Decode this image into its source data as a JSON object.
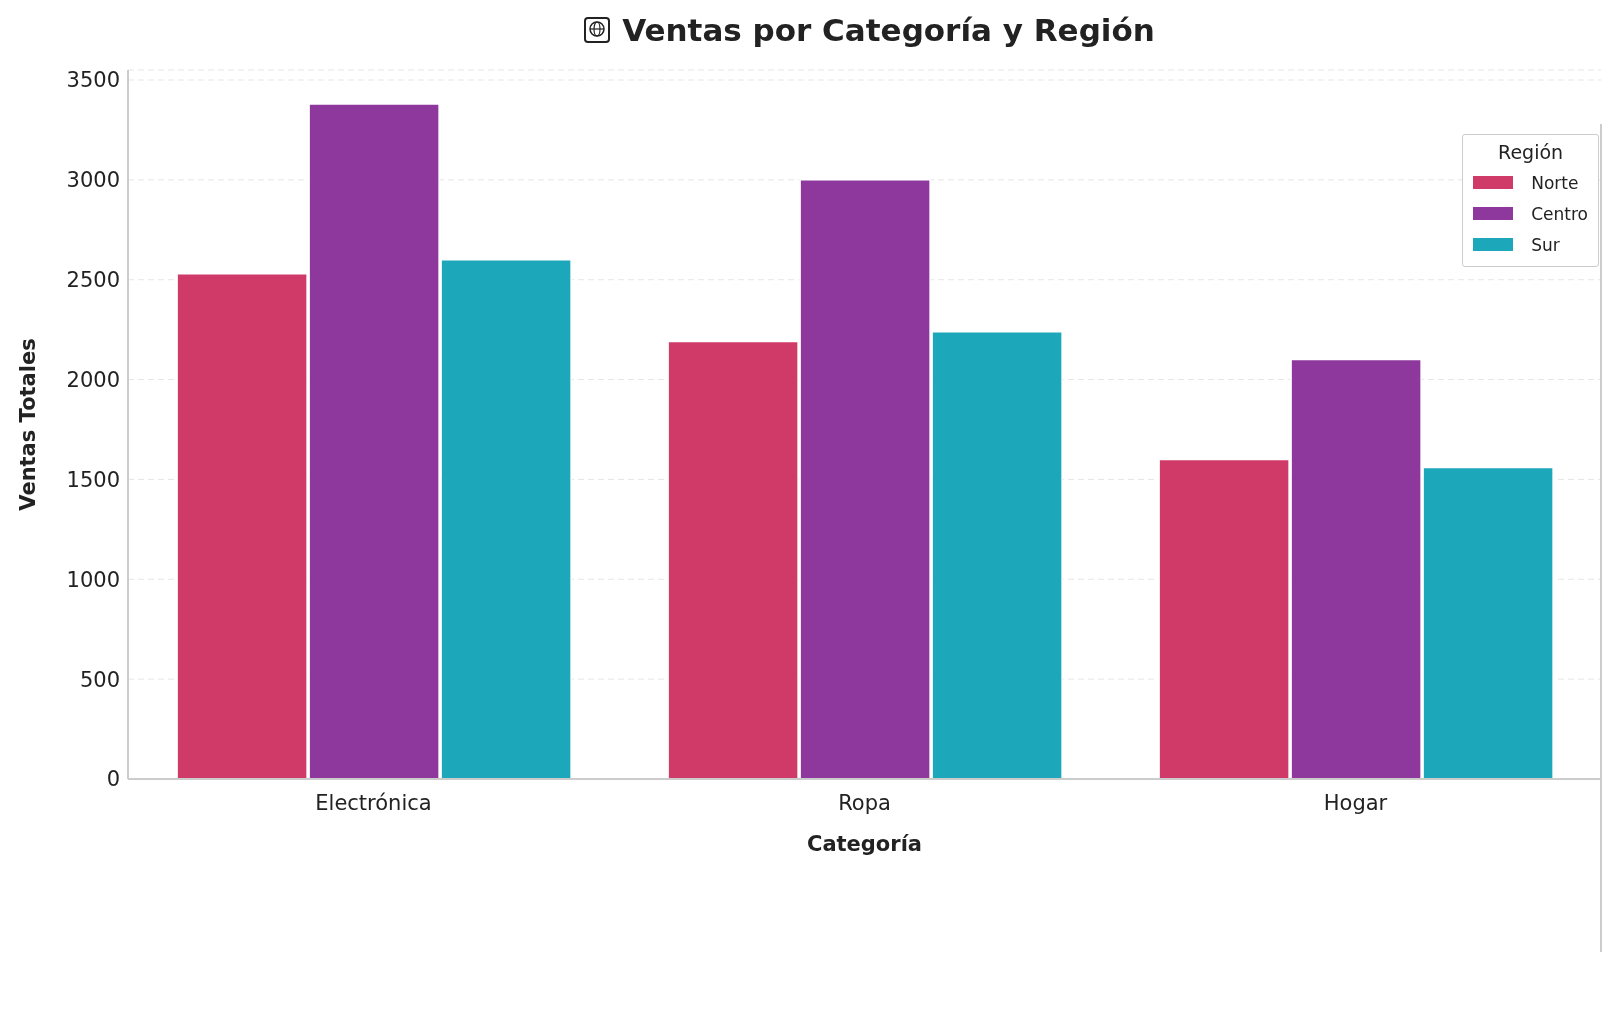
{
  "chart_data": {
    "type": "bar",
    "title": "Ventas por Categoría y Región",
    "xlabel": "Categoría",
    "ylabel": "Ventas Totales",
    "legend_title": "Región",
    "categories": [
      "Electrónica",
      "Ropa",
      "Hogar"
    ],
    "series": [
      {
        "name": "Norte",
        "color": "#d03a68",
        "values": [
          2530,
          2190,
          1600
        ]
      },
      {
        "name": "Centro",
        "color": "#8e389e",
        "values": [
          3380,
          3000,
          2100
        ]
      },
      {
        "name": "Sur",
        "color": "#1ca7ba",
        "values": [
          2600,
          2240,
          1560
        ]
      }
    ],
    "ylim": [
      0,
      3550
    ],
    "yticks": [
      0,
      500,
      1000,
      1500,
      2000,
      2500,
      3000,
      3500
    ],
    "grid": "y",
    "legend": "top right"
  }
}
